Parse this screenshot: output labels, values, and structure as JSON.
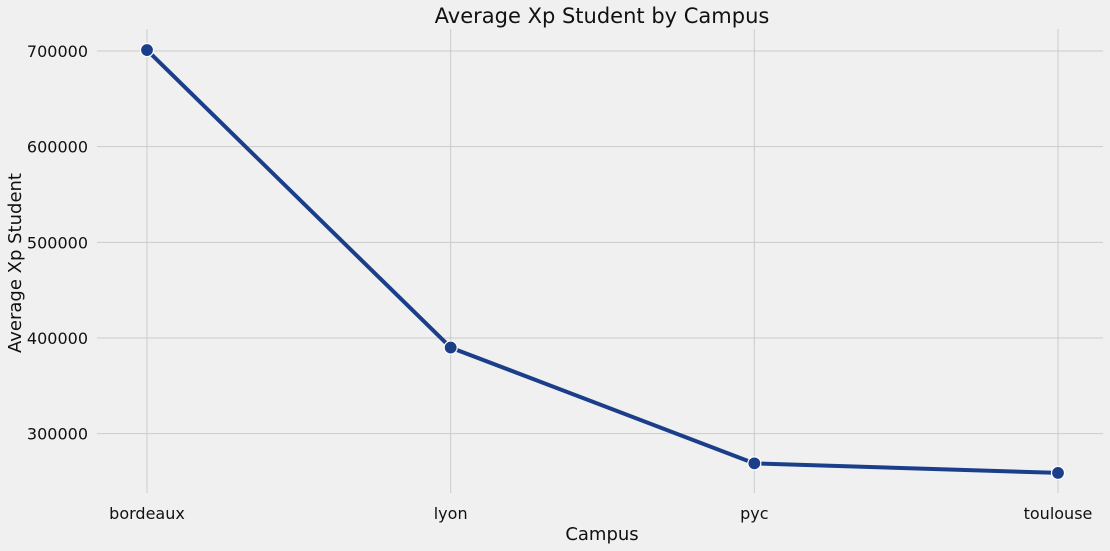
{
  "chart_data": {
    "type": "line",
    "title": "Average Xp Student by Campus",
    "xlabel": "Campus",
    "ylabel": "Average Xp Student",
    "categories": [
      "bordeaux",
      "lyon",
      "pyc",
      "toulouse"
    ],
    "series": [
      {
        "values": [
          701000,
          390000,
          269000,
          259000
        ],
        "color": "#1a3e8a"
      }
    ],
    "yticks": [
      300000,
      400000,
      500000,
      600000,
      700000
    ],
    "ytick_labels": [
      "300000",
      "400000",
      "500000",
      "600000",
      "700000"
    ],
    "ylim": [
      238000,
      723000
    ],
    "grid": true,
    "background": "#f0f0f0",
    "gridline_color": "#cbcbcb"
  }
}
